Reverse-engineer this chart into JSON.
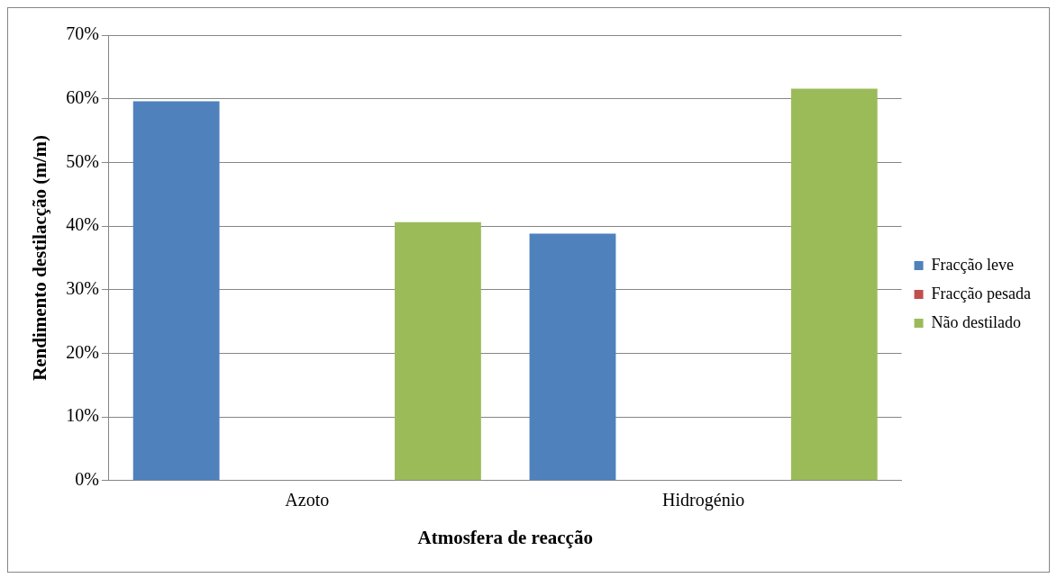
{
  "chart_data": {
    "type": "bar",
    "xlabel": "Atmosfera de reacção",
    "ylabel": "Rendimento destilacção (m/m)",
    "categories": [
      "Azoto",
      "Hidrogénio"
    ],
    "series": [
      {
        "name": "Fracção leve",
        "color": "#4f81bd",
        "values": [
          59.6,
          38.8
        ]
      },
      {
        "name": "Fracção pesada",
        "color": "#c0504d",
        "values": [
          0,
          0
        ]
      },
      {
        "name": "Não destilado",
        "color": "#9bbb59",
        "values": [
          40.6,
          61.6
        ]
      }
    ],
    "ylim": [
      0,
      70
    ],
    "yticks": [
      {
        "value": 0,
        "label": "0%"
      },
      {
        "value": 10,
        "label": "10%"
      },
      {
        "value": 20,
        "label": "20%"
      },
      {
        "value": 30,
        "label": "30%"
      },
      {
        "value": 40,
        "label": "40%"
      },
      {
        "value": 50,
        "label": "50%"
      },
      {
        "value": 60,
        "label": "60%"
      },
      {
        "value": 70,
        "label": "70%"
      }
    ],
    "grid": "y",
    "legend": "right"
  }
}
